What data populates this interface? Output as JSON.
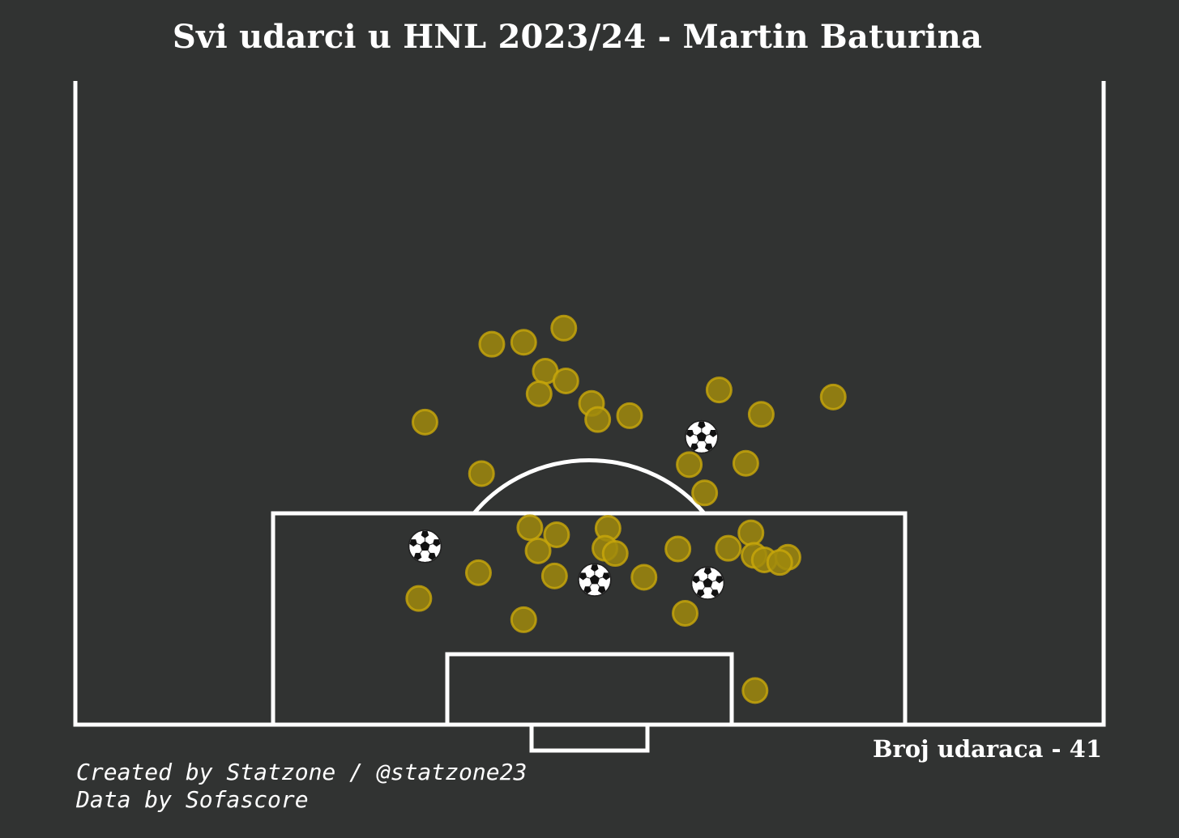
{
  "title": "Svi udarci u HNL 2023/24 - Martin Baturina",
  "shot_count_label": "Broj udaraca - 41",
  "credits": [
    "Created by Statzone / @statzone23",
    "Data by Sofascore"
  ],
  "colors": {
    "background": "#313332",
    "lines": "#ffffff",
    "shot": "#a08a0d",
    "shot_edge": "#c9a80a",
    "goal": "#ffffff"
  },
  "chart_data": {
    "type": "scatter",
    "title": "Svi udarci u HNL 2023/24 - Martin Baturina",
    "pitch": "half-pitch, attacking goal at bottom",
    "x_unit": "pitch width, 0-100 (left to right as displayed)",
    "y_unit": "distance from goal line, 0-100 (length of half pitch)",
    "legend": "none",
    "marker_legend": {
      "circle": "shot",
      "ball-icon": "goal"
    },
    "total_shots": 41,
    "shots": [
      {
        "x": 40.5,
        "y": 59.1,
        "goal": false
      },
      {
        "x": 43.6,
        "y": 59.4,
        "goal": false
      },
      {
        "x": 47.5,
        "y": 61.6,
        "goal": false
      },
      {
        "x": 45.7,
        "y": 54.9,
        "goal": false
      },
      {
        "x": 47.7,
        "y": 53.4,
        "goal": false
      },
      {
        "x": 45.1,
        "y": 51.4,
        "goal": false
      },
      {
        "x": 50.2,
        "y": 49.9,
        "goal": false
      },
      {
        "x": 50.8,
        "y": 47.4,
        "goal": false
      },
      {
        "x": 53.9,
        "y": 48.0,
        "goal": false
      },
      {
        "x": 34.0,
        "y": 47.0,
        "goal": false
      },
      {
        "x": 39.5,
        "y": 39.0,
        "goal": false
      },
      {
        "x": 62.6,
        "y": 52.0,
        "goal": false
      },
      {
        "x": 66.7,
        "y": 48.2,
        "goal": false
      },
      {
        "x": 73.7,
        "y": 50.9,
        "goal": false
      },
      {
        "x": 60.9,
        "y": 44.7,
        "goal": true
      },
      {
        "x": 59.7,
        "y": 40.4,
        "goal": false
      },
      {
        "x": 65.2,
        "y": 40.6,
        "goal": false
      },
      {
        "x": 61.2,
        "y": 36.0,
        "goal": false
      },
      {
        "x": 44.2,
        "y": 30.6,
        "goal": false
      },
      {
        "x": 46.8,
        "y": 29.5,
        "goal": false
      },
      {
        "x": 51.8,
        "y": 30.5,
        "goal": false
      },
      {
        "x": 65.7,
        "y": 29.8,
        "goal": false
      },
      {
        "x": 45.0,
        "y": 27.0,
        "goal": false
      },
      {
        "x": 51.5,
        "y": 27.4,
        "goal": false
      },
      {
        "x": 52.5,
        "y": 26.6,
        "goal": false
      },
      {
        "x": 58.6,
        "y": 27.3,
        "goal": false
      },
      {
        "x": 63.5,
        "y": 27.4,
        "goal": false
      },
      {
        "x": 66.0,
        "y": 26.3,
        "goal": false
      },
      {
        "x": 67.0,
        "y": 25.6,
        "goal": false
      },
      {
        "x": 69.3,
        "y": 26.0,
        "goal": false
      },
      {
        "x": 34.0,
        "y": 27.7,
        "goal": true
      },
      {
        "x": 39.2,
        "y": 23.6,
        "goal": false
      },
      {
        "x": 46.6,
        "y": 23.1,
        "goal": false
      },
      {
        "x": 50.5,
        "y": 22.5,
        "goal": true
      },
      {
        "x": 55.3,
        "y": 22.9,
        "goal": false
      },
      {
        "x": 61.5,
        "y": 22.0,
        "goal": true
      },
      {
        "x": 33.4,
        "y": 19.6,
        "goal": false
      },
      {
        "x": 43.6,
        "y": 16.3,
        "goal": false
      },
      {
        "x": 59.3,
        "y": 17.3,
        "goal": false
      },
      {
        "x": 66.1,
        "y": 5.3,
        "goal": false
      },
      {
        "x": 68.5,
        "y": 25.2,
        "goal": false
      }
    ]
  }
}
